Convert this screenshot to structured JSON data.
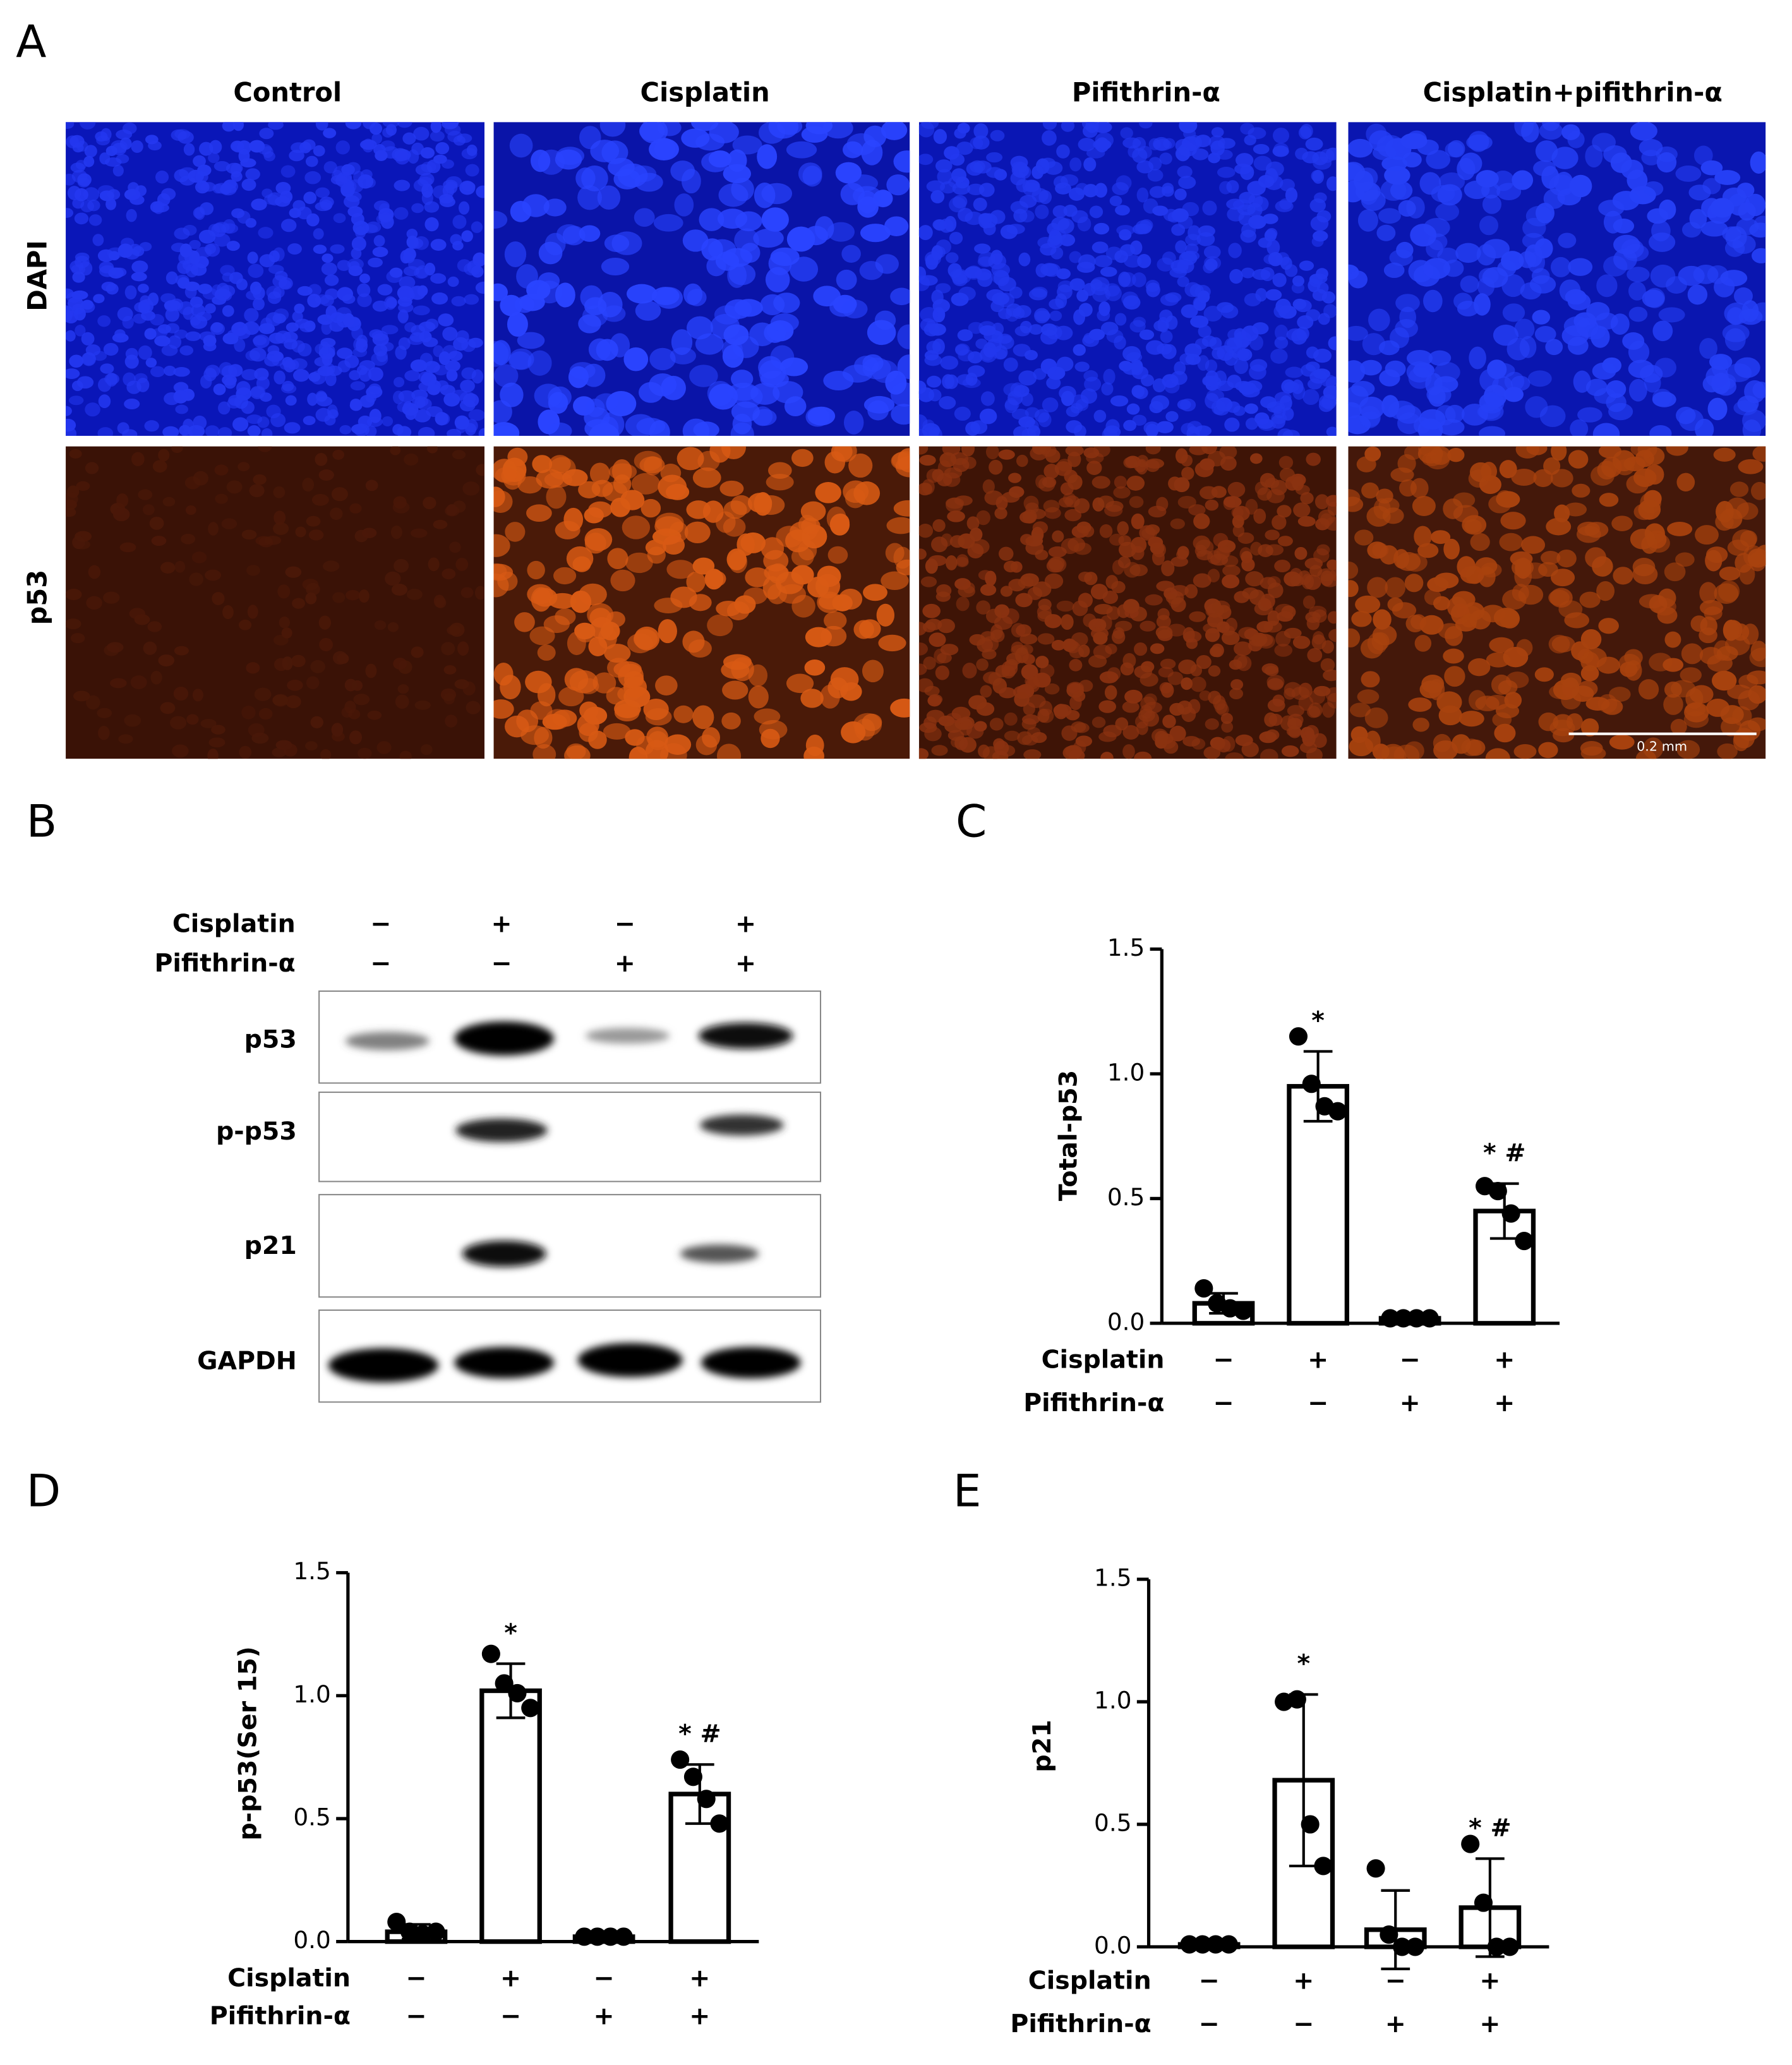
{
  "panel_labels": [
    "A",
    "B",
    "C",
    "D",
    "E"
  ],
  "panel_a": {
    "columns": [
      "Control",
      "Cisplatin",
      "Pifithrin-α",
      "Cisplatin+pifithrin-α"
    ],
    "rows": [
      "DAPI",
      "p53"
    ],
    "scale_bar": "0.2 mm"
  },
  "panel_b": {
    "treatments": [
      {
        "name": "Cisplatin",
        "signs": [
          "−",
          "+",
          "−",
          "+"
        ]
      },
      {
        "name": "Pifithrin-α",
        "signs": [
          "−",
          "−",
          "+",
          "+"
        ]
      }
    ],
    "rows": [
      "p53",
      "p-p53",
      "p21",
      "GAPDH"
    ]
  },
  "chart_data": [
    {
      "type": "bar",
      "ylabel": "Total-p53",
      "color": "#ffffff",
      "edgecolor": "#000000",
      "ylim": [
        0,
        1.5
      ],
      "yticks": [
        {
          "value": 0,
          "label": "0.0"
        },
        0.5,
        {
          "value": 1,
          "label": "1.0"
        },
        1.5
      ],
      "values": [
        0.08,
        0.95,
        0.02,
        0.45
      ],
      "errors": [
        0.04,
        0.14,
        0.01,
        0.11
      ],
      "points": [
        [
          0.14,
          0.08,
          0.06,
          0.05
        ],
        [
          1.15,
          0.96,
          0.87,
          0.85
        ],
        [
          0.02,
          0.02,
          0.02,
          0.02
        ],
        [
          0.55,
          0.53,
          0.44,
          0.33
        ]
      ],
      "treatments": [
        {
          "name": "Cisplatin",
          "signs": [
            "−",
            "+",
            "−",
            "+"
          ]
        },
        {
          "name": "Pifithrin-α",
          "signs": [
            "−",
            "−",
            "+",
            "+"
          ]
        }
      ],
      "annotations": [
        {
          "text": "*",
          "bar": 1
        },
        {
          "text": "* #",
          "bar": 3
        }
      ]
    },
    {
      "type": "bar",
      "ylabel": "p-p53(Ser 15)",
      "color": "#ffffff",
      "edgecolor": "#000000",
      "ylim": [
        0,
        1.5
      ],
      "yticks": [
        {
          "value": 0,
          "label": "0.0"
        },
        0.5,
        {
          "value": 1,
          "label": "1.0"
        },
        1.5
      ],
      "values": [
        0.04,
        1.02,
        0.02,
        0.6
      ],
      "errors": [
        0.03,
        0.11,
        0.01,
        0.12
      ],
      "points": [
        [
          0.08,
          0.04,
          0.03,
          0.04
        ],
        [
          1.17,
          1.05,
          1.01,
          0.95
        ],
        [
          0.02,
          0.02,
          0.02,
          0.02
        ],
        [
          0.74,
          0.67,
          0.58,
          0.48
        ]
      ],
      "treatments": [
        {
          "name": "Cisplatin",
          "signs": [
            "−",
            "+",
            "−",
            "+"
          ]
        },
        {
          "name": "Pifithrin-α",
          "signs": [
            "−",
            "−",
            "+",
            "+"
          ]
        }
      ],
      "annotations": [
        {
          "text": "*",
          "bar": 1
        },
        {
          "text": "* #",
          "bar": 3
        }
      ]
    },
    {
      "type": "bar",
      "ylabel": "p21",
      "color": "#ffffff",
      "edgecolor": "#000000",
      "ylim": [
        0,
        1.5
      ],
      "yticks": [
        {
          "value": 0,
          "label": "0.0"
        },
        0.5,
        {
          "value": 1,
          "label": "1.0"
        },
        1.5
      ],
      "values": [
        0.01,
        0.68,
        0.07,
        0.16
      ],
      "errors": [
        0.01,
        0.35,
        0.16,
        0.2
      ],
      "points": [
        [
          0.01,
          0.01,
          0.01,
          0.01
        ],
        [
          1.0,
          1.01,
          0.5,
          0.33
        ],
        [
          0.32,
          0.05,
          0.0,
          0.0
        ],
        [
          0.42,
          0.18,
          0.0,
          0.0
        ]
      ],
      "treatments": [
        {
          "name": "Cisplatin",
          "signs": [
            "−",
            "+",
            "−",
            "+"
          ]
        },
        {
          "name": "Pifithrin-α",
          "signs": [
            "−",
            "−",
            "+",
            "+"
          ]
        }
      ],
      "annotations": [
        {
          "text": "*",
          "bar": 1
        },
        {
          "text": "* #",
          "bar": 3
        }
      ]
    }
  ]
}
